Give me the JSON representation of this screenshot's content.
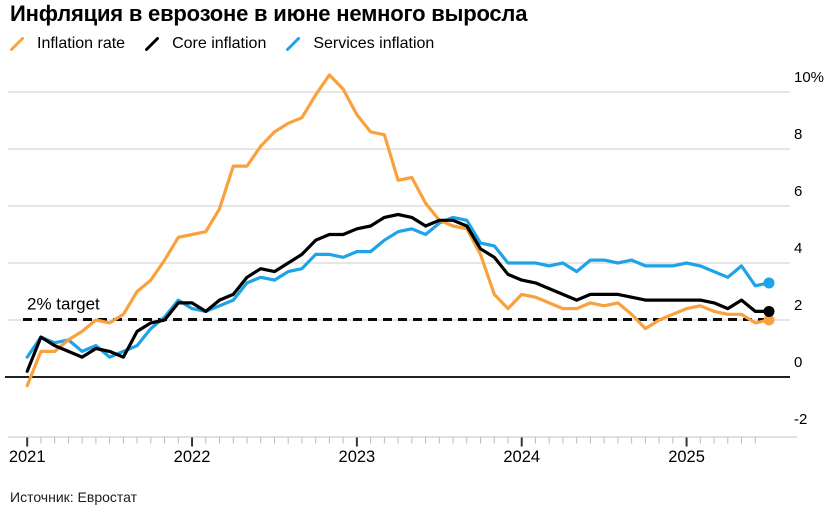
{
  "header": {
    "title": "Инфляция в еврозоне в июне немного выросла"
  },
  "footer": {
    "source": "Источник: Евростат"
  },
  "chart_data": {
    "type": "line",
    "title": "Инфляция в еврозоне в июне немного выросла",
    "x_unit": "month",
    "x_range": [
      "2020-12",
      "2025-06"
    ],
    "x_tick_labels": [
      "2021",
      "2022",
      "2023",
      "2024",
      "2025"
    ],
    "x_tick_month_index": [
      0,
      12,
      24,
      36,
      48
    ],
    "y_ticks": [
      {
        "label": "10%",
        "value": 10
      },
      {
        "label": "8",
        "value": 8
      },
      {
        "label": "6",
        "value": 6
      },
      {
        "label": "4",
        "value": 4
      },
      {
        "label": "2",
        "value": 2
      },
      {
        "label": "0",
        "value": 0
      },
      {
        "label": "-2",
        "value": -2
      }
    ],
    "ylim": [
      -2.5,
      11
    ],
    "grid": "horizontal",
    "legend_position": "top",
    "target": {
      "label": "2% target",
      "value": 2
    },
    "colors": {
      "inflation_rate": "#F9A13C",
      "core_inflation": "#000000",
      "services_inflation": "#1FA3E8",
      "gridline": "#D8D8D8",
      "axis": "#CFCFCF"
    },
    "series": [
      {
        "name": "Inflation rate",
        "color": "#F9A13C",
        "values": [
          -0.3,
          0.9,
          0.9,
          1.3,
          1.6,
          2.0,
          1.9,
          2.2,
          3.0,
          3.4,
          4.1,
          4.9,
          5.0,
          5.1,
          5.9,
          7.4,
          7.4,
          8.1,
          8.6,
          8.9,
          9.1,
          9.9,
          10.6,
          10.1,
          9.2,
          8.6,
          8.5,
          6.9,
          7.0,
          6.1,
          5.5,
          5.3,
          5.2,
          4.3,
          2.9,
          2.4,
          2.9,
          2.8,
          2.6,
          2.4,
          2.4,
          2.6,
          2.5,
          2.6,
          2.2,
          1.7,
          2.0,
          2.2,
          2.4,
          2.5,
          2.3,
          2.2,
          2.2,
          1.9,
          2.0
        ]
      },
      {
        "name": "Core inflation",
        "color": "#000000",
        "values": [
          0.2,
          1.4,
          1.1,
          0.9,
          0.7,
          1.0,
          0.9,
          0.7,
          1.6,
          1.9,
          2.0,
          2.6,
          2.6,
          2.3,
          2.7,
          2.9,
          3.5,
          3.8,
          3.7,
          4.0,
          4.3,
          4.8,
          5.0,
          5.0,
          5.2,
          5.3,
          5.6,
          5.7,
          5.6,
          5.3,
          5.5,
          5.5,
          5.3,
          4.5,
          4.2,
          3.6,
          3.4,
          3.3,
          3.1,
          2.9,
          2.7,
          2.9,
          2.9,
          2.9,
          2.8,
          2.7,
          2.7,
          2.7,
          2.7,
          2.7,
          2.6,
          2.4,
          2.7,
          2.3,
          2.3
        ]
      },
      {
        "name": "Services inflation",
        "color": "#1FA3E8",
        "values": [
          0.7,
          1.4,
          1.2,
          1.3,
          0.9,
          1.1,
          0.7,
          0.9,
          1.1,
          1.7,
          2.1,
          2.7,
          2.4,
          2.3,
          2.5,
          2.7,
          3.3,
          3.5,
          3.4,
          3.7,
          3.8,
          4.3,
          4.3,
          4.2,
          4.4,
          4.4,
          4.8,
          5.1,
          5.2,
          5.0,
          5.4,
          5.6,
          5.5,
          4.7,
          4.6,
          4.0,
          4.0,
          4.0,
          3.9,
          4.0,
          3.7,
          4.1,
          4.1,
          4.0,
          4.1,
          3.9,
          3.9,
          3.9,
          4.0,
          3.9,
          3.7,
          3.5,
          3.9,
          3.2,
          3.3
        ]
      }
    ]
  }
}
